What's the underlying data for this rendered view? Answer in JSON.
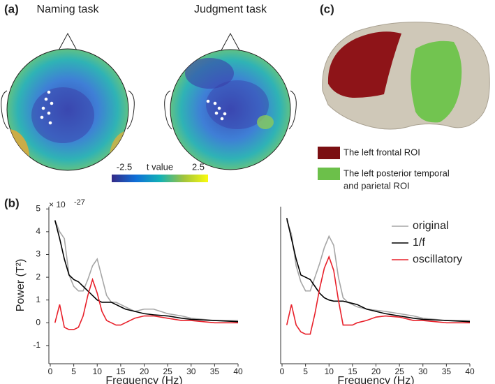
{
  "panels": [
    "(a)",
    "(b)",
    "(c)"
  ],
  "topomaps": [
    "Naming task",
    "Judgment task"
  ],
  "colorbar": {
    "label": "t value",
    "lim": [
      -2.5,
      2.5
    ],
    "ticks": [
      -2.5,
      2.5
    ]
  },
  "brain_legend": [
    {
      "color": "#7b0f12",
      "lines": [
        "The left frontal ROI"
      ]
    },
    {
      "color": "#6cc04a",
      "lines": [
        "The left posterior temporal",
        "and parietal ROI"
      ]
    }
  ],
  "chart_data": [
    {
      "type": "line",
      "ylabel": "Power (T²)",
      "xlabel": "Frequency (Hz)",
      "multiplier": "× 10",
      "multiplier_exponent": "-27",
      "x": [
        1,
        2,
        3,
        4,
        5,
        6,
        7,
        8,
        9,
        10,
        11,
        12,
        13,
        14,
        15,
        16,
        18,
        20,
        22,
        25,
        28,
        30,
        35,
        40
      ],
      "xlim": [
        0,
        40
      ],
      "xticks": [
        0,
        5,
        10,
        15,
        20,
        25,
        30,
        35,
        40
      ],
      "ylim": [
        -1.8,
        5.1
      ],
      "yticks": [
        -1,
        0,
        1,
        2,
        3,
        4,
        5
      ],
      "series": [
        {
          "color": "#a6a6a6",
          "values": [
            4.5,
            4.0,
            3.7,
            2.1,
            1.6,
            1.4,
            1.4,
            1.9,
            2.5,
            2.8,
            2.0,
            1.2,
            0.9,
            0.9,
            0.8,
            0.7,
            0.5,
            0.6,
            0.6,
            0.4,
            0.3,
            0.2,
            0.1,
            0.1
          ]
        },
        {
          "color": "#000000",
          "values": [
            4.5,
            3.7,
            2.8,
            2.1,
            1.9,
            1.8,
            1.6,
            1.4,
            1.2,
            1.0,
            0.9,
            0.9,
            0.9,
            0.8,
            0.7,
            0.6,
            0.5,
            0.4,
            0.35,
            0.3,
            0.2,
            0.15,
            0.1,
            0.05
          ]
        },
        {
          "color": "#e8202a",
          "values": [
            0,
            0.8,
            -0.2,
            -0.3,
            -0.3,
            -0.2,
            0.3,
            1.2,
            1.9,
            1.3,
            0.5,
            0.1,
            0,
            -0.1,
            -0.1,
            0,
            0.2,
            0.3,
            0.3,
            0.2,
            0.1,
            0.1,
            0,
            0
          ]
        }
      ]
    },
    {
      "type": "line",
      "xlabel": "Frequency (Hz)",
      "legend": "upper right",
      "x": [
        1,
        2,
        3,
        4,
        5,
        6,
        7,
        8,
        9,
        10,
        11,
        12,
        13,
        14,
        15,
        16,
        18,
        20,
        22,
        25,
        28,
        30,
        35,
        40
      ],
      "xlim": [
        0,
        40
      ],
      "xticks": [
        0,
        5,
        10,
        15,
        20,
        25,
        30,
        35,
        40
      ],
      "ylim": [
        -1.8,
        5.1
      ],
      "series": [
        {
          "name": "original",
          "color": "#a6a6a6",
          "values": [
            4.5,
            3.9,
            2.5,
            1.8,
            1.4,
            1.4,
            2.0,
            2.6,
            3.3,
            3.8,
            3.4,
            2.0,
            1.1,
            0.9,
            0.8,
            0.7,
            0.6,
            0.55,
            0.5,
            0.4,
            0.3,
            0.2,
            0.1,
            0.1
          ]
        },
        {
          "name": "1/f",
          "color": "#000000",
          "values": [
            4.6,
            3.7,
            2.8,
            2.1,
            2.0,
            1.9,
            1.6,
            1.3,
            1.1,
            1.0,
            0.95,
            0.95,
            0.95,
            0.9,
            0.85,
            0.8,
            0.6,
            0.5,
            0.4,
            0.3,
            0.2,
            0.15,
            0.1,
            0.05
          ]
        },
        {
          "name": "oscillatory",
          "color": "#e8202a",
          "values": [
            -0.1,
            0.8,
            -0.1,
            -0.4,
            -0.5,
            -0.5,
            0.4,
            1.5,
            2.4,
            2.9,
            2.3,
            1.0,
            -0.1,
            -0.1,
            -0.1,
            0,
            0.1,
            0.25,
            0.3,
            0.25,
            0.1,
            0.1,
            0,
            0
          ]
        }
      ]
    }
  ]
}
